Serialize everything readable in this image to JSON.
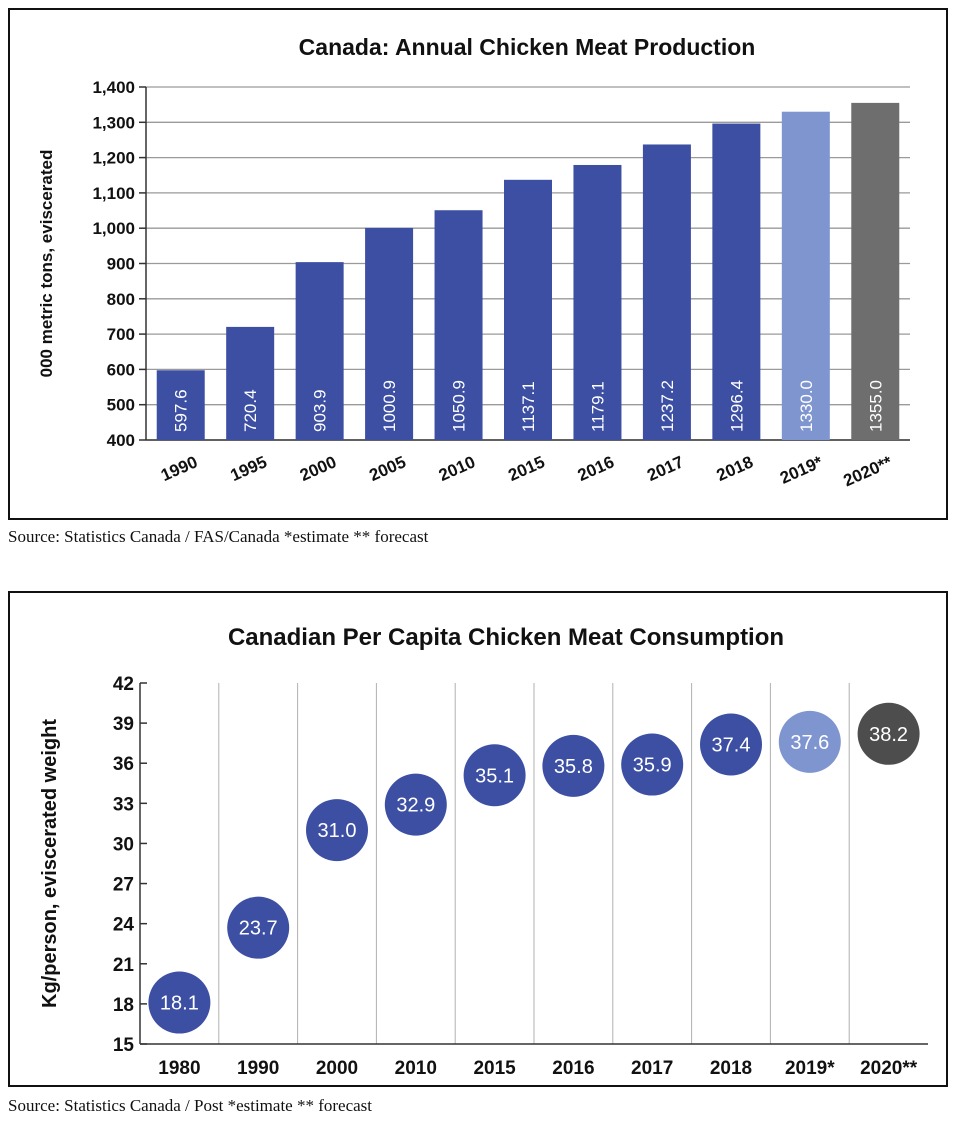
{
  "chart_data": [
    {
      "type": "bar",
      "title": "Canada: Annual Chicken Meat Production",
      "ylabel": "000 metric tons, eviscerated",
      "xlabel": "",
      "ylim": [
        400,
        1400
      ],
      "yticks": [
        "400",
        "500",
        "600",
        "700",
        "800",
        "900",
        "1,000",
        "1,100",
        "1,200",
        "1,300",
        "1,400"
      ],
      "ytick_values": [
        400,
        500,
        600,
        700,
        800,
        900,
        1000,
        1100,
        1200,
        1300,
        1400
      ],
      "categories": [
        "1990",
        "1995",
        "2000",
        "2005",
        "2010",
        "2015",
        "2016",
        "2017",
        "2018",
        "2019*",
        "2020**"
      ],
      "values": [
        597.6,
        720.4,
        903.9,
        1000.9,
        1050.9,
        1137.1,
        1179.1,
        1237.2,
        1296.4,
        1330.0,
        1355.0
      ],
      "labels": [
        "597.6",
        "720.4",
        "903.9",
        "1000.9",
        "1050.9",
        "1137.1",
        "1179.1",
        "1237.2",
        "1296.4",
        "1330.0",
        "1355.0"
      ],
      "colors": [
        "#3c4fa3",
        "#3c4fa3",
        "#3c4fa3",
        "#3c4fa3",
        "#3c4fa3",
        "#3c4fa3",
        "#3c4fa3",
        "#3c4fa3",
        "#3c4fa3",
        "#7f95d0",
        "#6e6e6e"
      ],
      "grid": true,
      "source": "Source: Statistics Canada / FAS/Canada *estimate ** forecast"
    },
    {
      "type": "scatter",
      "title": "Canadian Per Capita Chicken Meat Consumption",
      "ylabel": "Kg/person, eviscerated weight",
      "xlabel": "",
      "ylim": [
        15,
        42
      ],
      "yticks": [
        "15",
        "18",
        "21",
        "24",
        "27",
        "30",
        "33",
        "36",
        "39",
        "42"
      ],
      "ytick_values": [
        15,
        18,
        21,
        24,
        27,
        30,
        33,
        36,
        39,
        42
      ],
      "categories": [
        "1980",
        "1990",
        "2000",
        "2010",
        "2015",
        "2016",
        "2017",
        "2018",
        "2019*",
        "2020**"
      ],
      "values": [
        18.1,
        23.7,
        31.0,
        32.9,
        35.1,
        35.8,
        35.9,
        37.4,
        37.6,
        38.2
      ],
      "labels": [
        "18.1",
        "23.7",
        "31.0",
        "32.9",
        "35.1",
        "35.8",
        "35.9",
        "37.4",
        "37.6",
        "38.2"
      ],
      "colors": [
        "#3c4fa3",
        "#3c4fa3",
        "#3c4fa3",
        "#3c4fa3",
        "#3c4fa3",
        "#3c4fa3",
        "#3c4fa3",
        "#3c4fa3",
        "#7f95d0",
        "#4d4d4d"
      ],
      "grid": true,
      "source": "Source: Statistics Canada / Post *estimate ** forecast"
    }
  ]
}
